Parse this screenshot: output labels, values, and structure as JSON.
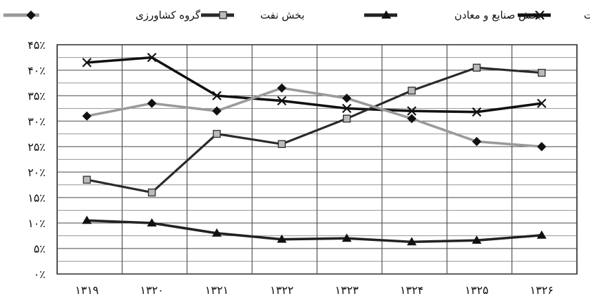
{
  "chart_data": {
    "type": "line",
    "title": "",
    "xlabel": "",
    "ylabel": "",
    "x": [
      "۱۳۱۹",
      "۱۳۲۰",
      "۱۳۲۱",
      "۱۳۲۲",
      "۱۳۲۳",
      "۱۳۲۴",
      "۱۳۲۵",
      "۱۳۲۶"
    ],
    "yticks": [
      "۰٪",
      "۵٪",
      "۱۰٪",
      "۱۵٪",
      "۲۰٪",
      "۲۵٪",
      "۳۰٪",
      "۳۵٪",
      "۴۰٪",
      "۴۵٪"
    ],
    "ylim": [
      0,
      45
    ],
    "grid": true,
    "legend_position": "top",
    "series": [
      {
        "name": "بخش خدمات",
        "color": "#111111",
        "marker": "x",
        "values": [
          41.5,
          42.5,
          35,
          34,
          32.5,
          32,
          31.8,
          33.5
        ]
      },
      {
        "name": "بخش صنایع و معادن",
        "color": "#222222",
        "marker": "triangle",
        "values": [
          10.5,
          10,
          8,
          6.8,
          7,
          6.3,
          6.6,
          7.6
        ]
      },
      {
        "name": "بخش نفت",
        "color": "#2a2a2a",
        "marker": "square",
        "values": [
          18.5,
          16,
          27.5,
          25.5,
          30.5,
          36,
          40.5,
          39.5
        ]
      },
      {
        "name": "گروه کشاورزی",
        "color": "#9a9a9a",
        "marker": "diamond",
        "values": [
          31,
          33.5,
          32,
          36.5,
          34.5,
          30.5,
          26,
          25
        ]
      }
    ]
  }
}
